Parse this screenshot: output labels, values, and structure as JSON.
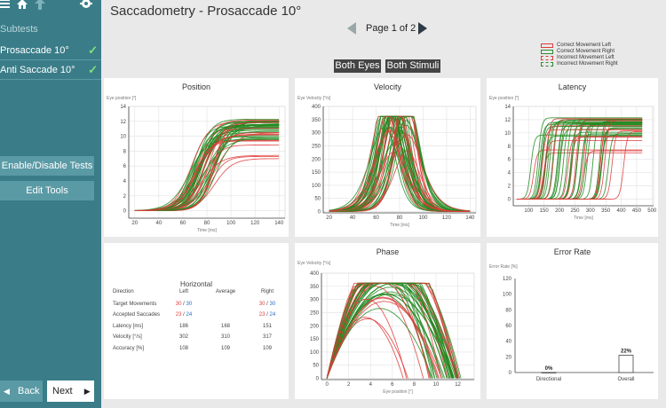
{
  "sidebar": {
    "subtests_label": "Subtests",
    "items": [
      {
        "label": "Prosaccade 10°",
        "check": "✓"
      },
      {
        "label": "Anti Saccade 10°",
        "check": "✓"
      }
    ],
    "enable_disable": "Enable/Disable Tests",
    "edit_tools": "Edit Tools",
    "back": "Back",
    "next": "Next",
    "back_icon": "◀",
    "next_icon": "▶"
  },
  "header": {
    "title": "Saccadometry - Prosaccade 10°",
    "page_label": "Page 1 of 2",
    "both_eyes": "Both Eyes",
    "both_stimuli": "Both Stimuli"
  },
  "legend": [
    {
      "label": "Correct Movement Left",
      "color": "#e03c3c",
      "dashed": false
    },
    {
      "label": "Correct Movement Right",
      "color": "#2e8b2e",
      "dashed": false
    },
    {
      "label": "Incorrect Movement Left",
      "color": "#e03c3c",
      "dashed": true
    },
    {
      "label": "Incorrect Movement Right",
      "color": "#2e8b2e",
      "dashed": true
    }
  ],
  "colors": {
    "left": "#e03c3c",
    "right": "#1e8a1e",
    "accent": "#3a7d89"
  },
  "panels": {
    "position": {
      "title": "Position",
      "ylabel": "Eye position [°]",
      "xlabel": "Time [ms]"
    },
    "velocity": {
      "title": "Velocity",
      "ylabel": "Eye Velocity [°/s]",
      "xlabel": "Time [ms]"
    },
    "latency": {
      "title": "Latency",
      "ylabel": "Eye position [°]",
      "xlabel": "Time [ms]"
    },
    "phase": {
      "title": "Phase",
      "ylabel": "Eye Velocity [°/s]",
      "xlabel": "Eye position [°]"
    },
    "error": {
      "title": "Error Rate",
      "ylabel": "Error Rate [%]"
    }
  },
  "table": {
    "title": "Horizontal",
    "headers": [
      "Direction",
      "Left",
      "Average",
      "Right"
    ],
    "rows": [
      {
        "label": "Target Movements",
        "left": [
          "30",
          "30"
        ],
        "avg": "",
        "right": [
          "30",
          "30"
        ]
      },
      {
        "label": "Accepted Saccades",
        "left": [
          "23",
          "24"
        ],
        "avg": "",
        "right": [
          "23",
          "24"
        ]
      },
      {
        "label": "Latency [ms]",
        "left": "186",
        "avg": "168",
        "right": "151"
      },
      {
        "label": "Velocity [°/s]",
        "left": "302",
        "avg": "310",
        "right": "317"
      },
      {
        "label": "Accuracy [%]",
        "left": "108",
        "avg": "109",
        "right": "109"
      }
    ],
    "slash": "/"
  },
  "chart_data": [
    {
      "type": "line",
      "title": "Position",
      "xlabel": "Time [ms]",
      "ylabel": "Eye position [°]",
      "xlim": [
        15,
        145
      ],
      "ylim": [
        -1,
        14
      ],
      "xticks": [
        20,
        40,
        60,
        80,
        100,
        120,
        140
      ],
      "yticks": [
        0,
        2,
        4,
        6,
        8,
        10,
        12,
        14
      ],
      "series_desc": "about 47 saccade traces, left eye (red) and right eye (green), each rising from 0 to a plateau of 7–12.5°"
    },
    {
      "type": "line",
      "title": "Velocity",
      "xlabel": "Time [ms]",
      "ylabel": "Eye Velocity [°/s]",
      "xlim": [
        15,
        145
      ],
      "ylim": [
        -5,
        400
      ],
      "xticks": [
        20,
        40,
        60,
        80,
        100,
        120,
        140
      ],
      "yticks": [
        0,
        50,
        100,
        150,
        200,
        250,
        300,
        350,
        400
      ],
      "series_desc": "bell-shaped velocity profiles peaking at about 200–360 °/s around 75–85 ms"
    },
    {
      "type": "line",
      "title": "Latency",
      "xlabel": "Time [ms]",
      "ylabel": "Eye position [°]",
      "xlim": [
        50,
        505
      ],
      "ylim": [
        -1,
        14
      ],
      "xticks": [
        100,
        150,
        200,
        250,
        300,
        350,
        400,
        450,
        500
      ],
      "yticks": [
        0,
        2,
        4,
        6,
        8,
        10,
        12,
        14
      ],
      "series_desc": "position traces aligned to stimulus onset, with onsets spread from about 100 to 420 ms"
    },
    {
      "type": "line",
      "title": "Phase",
      "xlabel": "Eye position [°]",
      "ylabel": "Eye Velocity [°/s]",
      "xlim": [
        -0.5,
        13.5
      ],
      "ylim": [
        -5,
        400
      ],
      "xticks": [
        0,
        2,
        4,
        6,
        8,
        10,
        12
      ],
      "yticks": [
        0,
        50,
        100,
        150,
        200,
        250,
        300,
        350,
        400
      ],
      "series_desc": "phase-plane arches from 0° to an endpoint of 7–12.5° with peaks of 200–360 °/s"
    },
    {
      "type": "bar",
      "title": "Error Rate",
      "ylabel": "Error Rate [%]",
      "categories": [
        "Directional",
        "Overall"
      ],
      "values": [
        0,
        22
      ],
      "labels": [
        "0%",
        "22%"
      ],
      "ylim": [
        0,
        120
      ],
      "yticks": [
        0,
        20,
        40,
        60,
        80,
        100,
        120
      ]
    }
  ]
}
